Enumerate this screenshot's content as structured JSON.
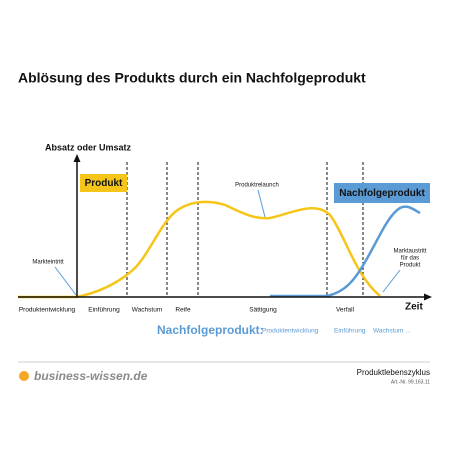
{
  "title": "Ablösung des Produkts durch ein Nachfolgeprodukt",
  "axes": {
    "y_label": "Absatz oder Umsatz",
    "x_label": "Zeit"
  },
  "boxes": {
    "product": "Produkt",
    "successor": "Nachfolgeprodukt"
  },
  "annotations": {
    "market_entry": "Markteintritt",
    "relaunch": "Produktrelaunch",
    "market_exit": [
      "Marktaustritt",
      "für das",
      "Produkt"
    ]
  },
  "phases": [
    "Produktentwicklung",
    "Einführung",
    "Wachstum",
    "Reife",
    "Sättigung",
    "Verfall"
  ],
  "successor_row": {
    "label": "Nachfolgeprodukt:",
    "phases": [
      "Produktentwicklung",
      "Einführung",
      "Wachstum ..."
    ]
  },
  "footer": {
    "brand": "business-wissen.de",
    "topic": "Produktlebenszyklus",
    "article": "Art.-Nr. 99.163.11"
  }
}
